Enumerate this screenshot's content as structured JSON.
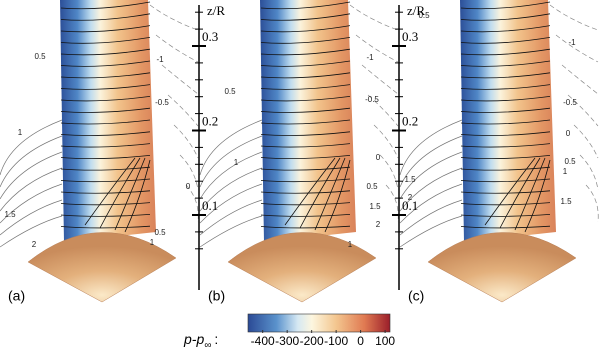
{
  "panels": [
    {
      "label": "(a)",
      "contour_labels": [
        "0.5",
        "1",
        "-1",
        "-0.5",
        "0",
        "1.5",
        "2",
        "0.5",
        "1"
      ]
    },
    {
      "label": "(b)",
      "contour_labels": [
        "0.5",
        "1",
        "-1",
        "-0.5",
        "0",
        "0.5",
        "1.5",
        "1",
        "2"
      ]
    },
    {
      "label": "(c)",
      "contour_labels": [
        "0.5",
        "-1",
        "-0.5",
        "0",
        "0.5",
        "1",
        "1.5",
        "1.5",
        "2"
      ]
    }
  ],
  "axes": [
    {
      "title": "z/R",
      "ticks": [
        0.1,
        0.2,
        0.3
      ]
    },
    {
      "title": "z/R",
      "ticks": [
        0.1,
        0.2,
        0.3
      ]
    }
  ],
  "colorbar": {
    "symbol": "p-p",
    "subscript": "∞",
    "separator": ":",
    "range": [
      -460,
      120
    ],
    "ticks": [
      -400,
      -300,
      -200,
      -100,
      0,
      100
    ]
  }
}
